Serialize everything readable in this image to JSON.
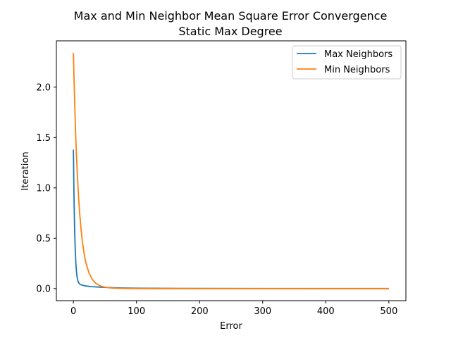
{
  "chart_data": {
    "type": "line",
    "title": "Max and Min Neighbor Mean Square Error Convergence",
    "subtitle": "Static Max Degree",
    "xlabel": "Error",
    "ylabel": "Iteration",
    "xlim": [
      -27,
      527
    ],
    "ylim": [
      -0.12,
      2.46
    ],
    "xticks": [
      0,
      100,
      200,
      300,
      400,
      500
    ],
    "yticks": [
      0.0,
      0.5,
      1.0,
      1.5,
      2.0
    ],
    "xtick_labels": [
      "0",
      "100",
      "200",
      "300",
      "400",
      "500"
    ],
    "ytick_labels": [
      "0.0",
      "0.5",
      "1.0",
      "1.5",
      "2.0"
    ],
    "grid": false,
    "legend_position": "top-right",
    "series": [
      {
        "name": "Max Neighbors",
        "color": "#1f77b4",
        "x": [
          0,
          1,
          2,
          3,
          4,
          5,
          6,
          7,
          8,
          10,
          12,
          15,
          20,
          25,
          30,
          40,
          50,
          60,
          80,
          100,
          150,
          200,
          300,
          400,
          500
        ],
        "y": [
          1.38,
          0.88,
          0.57,
          0.37,
          0.24,
          0.16,
          0.11,
          0.08,
          0.06,
          0.045,
          0.038,
          0.032,
          0.026,
          0.022,
          0.019,
          0.015,
          0.012,
          0.009,
          0.006,
          0.004,
          0.002,
          0.001,
          0.0005,
          0.0002,
          0.0001
        ]
      },
      {
        "name": "Min Neighbors",
        "color": "#ff7f0e",
        "x": [
          0,
          1,
          2,
          3,
          4,
          5,
          6,
          8,
          10,
          12,
          14,
          16,
          18,
          20,
          25,
          30,
          35,
          40,
          45,
          50,
          60,
          70,
          80,
          100,
          120,
          150,
          200,
          300,
          400,
          500
        ],
        "y": [
          2.34,
          2.08,
          1.85,
          1.64,
          1.46,
          1.3,
          1.16,
          0.93,
          0.74,
          0.6,
          0.48,
          0.39,
          0.31,
          0.25,
          0.15,
          0.09,
          0.056,
          0.035,
          0.022,
          0.014,
          0.006,
          0.003,
          0.0015,
          0.0005,
          0.0002,
          0.0001,
          0.0,
          0.0,
          0.0,
          0.0
        ]
      }
    ]
  }
}
